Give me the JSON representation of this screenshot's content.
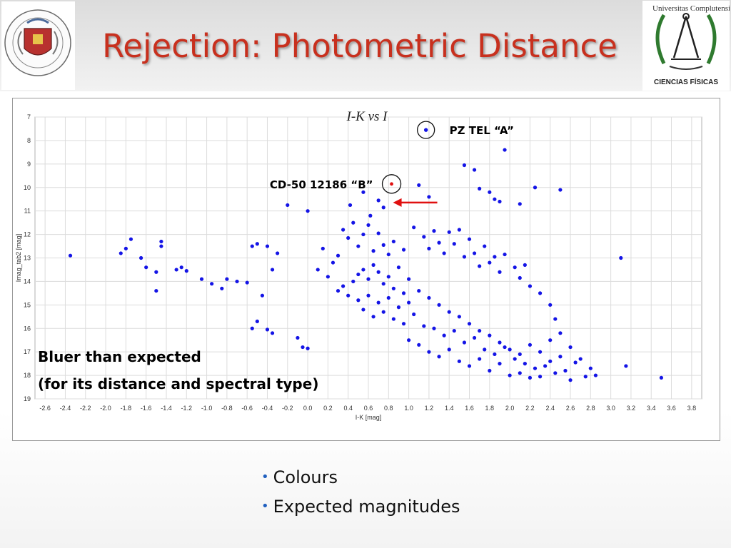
{
  "slide": {
    "title": "Rejection: Photometric Distance",
    "logo_right_caption": "CIENCIAS FÍSICAS",
    "bullets": [
      "Colours",
      "Expected magnitudes"
    ],
    "accent_color": "#c8301e",
    "bullet_color": "#1f5fbf"
  },
  "chart_data": {
    "type": "scatter",
    "title": "I-K  vs I",
    "xlabel": "I-K [mag]",
    "ylabel": "Imag_tab2 [mag]",
    "xlim": [
      -2.7,
      3.9
    ],
    "ylim": [
      7,
      19
    ],
    "y_inverted": true,
    "grid": true,
    "x_ticks": [
      "-2.6",
      "-2.4",
      "-2.2",
      "-2.0",
      "-1.8",
      "-1.6",
      "-1.4",
      "-1.2",
      "-1.0",
      "-0.8",
      "-0.6",
      "-0.4",
      "-0.2",
      "0.0",
      "0.2",
      "0.4",
      "0.6",
      "0.8",
      "1.0",
      "1.2",
      "1.4",
      "1.6",
      "1.8",
      "2.0",
      "2.2",
      "2.4",
      "2.6",
      "2.8",
      "3.0",
      "3.2",
      "3.4",
      "3.6",
      "3.8"
    ],
    "y_ticks": [
      "7",
      "8",
      "9",
      "10",
      "11",
      "12",
      "13",
      "14",
      "15",
      "16",
      "17",
      "18",
      "19"
    ],
    "point_color": "#1414e6",
    "annotations": [
      {
        "label": "PZ TEL “A”",
        "x": 1.17,
        "y": 7.55
      },
      {
        "label": "CD-50 12186 “B”",
        "x": 0.83,
        "y": 9.85
      },
      {
        "label": "Bluer than expected",
        "x": -2.65,
        "y": 17.1
      },
      {
        "label": "(for its distance and spectral type)",
        "x": -2.65,
        "y": 18.3
      }
    ],
    "series": [
      {
        "points": [
          [
            1.17,
            7.55
          ],
          [
            0.83,
            9.85
          ],
          [
            -2.35,
            12.9
          ],
          [
            -1.85,
            12.8
          ],
          [
            -1.75,
            12.2
          ],
          [
            -1.8,
            12.6
          ],
          [
            -1.65,
            13.0
          ],
          [
            -1.6,
            13.4
          ],
          [
            -1.5,
            13.6
          ],
          [
            -1.45,
            12.3
          ],
          [
            -1.45,
            12.5
          ],
          [
            -1.3,
            13.5
          ],
          [
            -1.25,
            13.4
          ],
          [
            -1.2,
            13.55
          ],
          [
            -1.5,
            14.4
          ],
          [
            -1.05,
            13.9
          ],
          [
            -0.95,
            14.1
          ],
          [
            -0.85,
            14.3
          ],
          [
            -0.8,
            13.9
          ],
          [
            -0.7,
            14.0
          ],
          [
            -0.6,
            14.05
          ],
          [
            -0.55,
            12.5
          ],
          [
            -0.5,
            12.4
          ],
          [
            -0.4,
            12.5
          ],
          [
            -0.3,
            12.8
          ],
          [
            -0.35,
            13.5
          ],
          [
            -0.45,
            14.6
          ],
          [
            -0.5,
            15.7
          ],
          [
            -0.55,
            16.0
          ],
          [
            -0.4,
            16.05
          ],
          [
            -0.35,
            16.2
          ],
          [
            -0.1,
            16.4
          ],
          [
            -0.05,
            16.8
          ],
          [
            0.0,
            16.85
          ],
          [
            -0.2,
            10.75
          ],
          [
            0.0,
            11.0
          ],
          [
            0.42,
            10.75
          ],
          [
            0.55,
            10.2
          ],
          [
            0.62,
            11.2
          ],
          [
            0.7,
            10.55
          ],
          [
            0.75,
            10.85
          ],
          [
            1.1,
            9.9
          ],
          [
            1.2,
            10.4
          ],
          [
            1.55,
            9.05
          ],
          [
            1.65,
            9.25
          ],
          [
            1.8,
            10.2
          ],
          [
            1.7,
            10.05
          ],
          [
            1.85,
            10.5
          ],
          [
            1.9,
            10.6
          ],
          [
            1.95,
            8.4
          ],
          [
            2.15,
            13.3
          ],
          [
            2.25,
            10.0
          ],
          [
            2.5,
            10.1
          ],
          [
            2.1,
            10.7
          ],
          [
            3.1,
            13.0
          ],
          [
            3.5,
            18.1
          ],
          [
            3.15,
            17.6
          ],
          [
            2.65,
            17.45
          ],
          [
            2.75,
            18.05
          ],
          [
            0.85,
            12.3
          ],
          [
            0.95,
            12.65
          ],
          [
            1.05,
            11.7
          ],
          [
            1.15,
            12.1
          ],
          [
            1.2,
            12.6
          ],
          [
            1.25,
            11.85
          ],
          [
            1.3,
            12.35
          ],
          [
            1.35,
            12.8
          ],
          [
            1.4,
            11.9
          ],
          [
            1.45,
            12.4
          ],
          [
            1.5,
            11.8
          ],
          [
            1.55,
            12.95
          ],
          [
            1.6,
            12.2
          ],
          [
            1.65,
            12.8
          ],
          [
            1.7,
            13.35
          ],
          [
            1.75,
            12.5
          ],
          [
            1.8,
            13.2
          ],
          [
            1.85,
            12.95
          ],
          [
            1.9,
            13.6
          ],
          [
            1.95,
            12.85
          ],
          [
            2.05,
            13.4
          ],
          [
            2.1,
            13.85
          ],
          [
            2.2,
            14.2
          ],
          [
            2.3,
            14.5
          ],
          [
            2.4,
            15.0
          ],
          [
            2.45,
            15.6
          ],
          [
            0.35,
            11.8
          ],
          [
            0.4,
            12.15
          ],
          [
            0.45,
            11.5
          ],
          [
            0.5,
            12.5
          ],
          [
            0.55,
            12.0
          ],
          [
            0.6,
            11.6
          ],
          [
            0.65,
            12.7
          ],
          [
            0.7,
            11.95
          ],
          [
            0.75,
            12.45
          ],
          [
            0.8,
            12.85
          ],
          [
            0.3,
            12.9
          ],
          [
            0.25,
            13.2
          ],
          [
            0.15,
            12.6
          ],
          [
            0.1,
            13.5
          ],
          [
            0.2,
            13.8
          ],
          [
            0.5,
            14.8
          ],
          [
            0.6,
            14.6
          ],
          [
            0.7,
            14.9
          ],
          [
            0.8,
            14.7
          ],
          [
            0.9,
            15.1
          ],
          [
            1.0,
            14.9
          ],
          [
            0.55,
            15.2
          ],
          [
            0.65,
            15.5
          ],
          [
            0.75,
            15.3
          ],
          [
            0.85,
            15.6
          ],
          [
            0.95,
            15.8
          ],
          [
            1.05,
            15.4
          ],
          [
            1.15,
            15.9
          ],
          [
            1.25,
            16.0
          ],
          [
            1.35,
            16.3
          ],
          [
            1.45,
            16.1
          ],
          [
            1.55,
            16.6
          ],
          [
            1.65,
            16.4
          ],
          [
            1.75,
            16.9
          ],
          [
            1.85,
            17.1
          ],
          [
            1.95,
            16.8
          ],
          [
            2.05,
            17.3
          ],
          [
            2.15,
            17.5
          ],
          [
            2.25,
            17.7
          ],
          [
            2.35,
            17.6
          ],
          [
            2.45,
            17.9
          ],
          [
            2.55,
            17.8
          ],
          [
            2.6,
            18.2
          ],
          [
            1.0,
            16.5
          ],
          [
            1.1,
            16.7
          ],
          [
            1.2,
            17.0
          ],
          [
            1.3,
            17.2
          ],
          [
            1.4,
            16.9
          ],
          [
            1.5,
            17.4
          ],
          [
            1.6,
            17.6
          ],
          [
            1.7,
            17.3
          ],
          [
            1.8,
            17.8
          ],
          [
            1.9,
            17.5
          ],
          [
            2.0,
            18.0
          ],
          [
            2.1,
            17.9
          ],
          [
            2.2,
            18.1
          ],
          [
            2.3,
            18.05
          ],
          [
            2.4,
            17.4
          ],
          [
            2.5,
            17.2
          ],
          [
            0.3,
            14.4
          ],
          [
            0.35,
            14.2
          ],
          [
            0.4,
            14.6
          ],
          [
            0.45,
            14.0
          ],
          [
            0.5,
            13.7
          ],
          [
            0.55,
            13.5
          ],
          [
            0.6,
            13.9
          ],
          [
            0.65,
            13.3
          ],
          [
            0.7,
            13.6
          ],
          [
            0.75,
            14.1
          ],
          [
            0.8,
            13.8
          ],
          [
            0.85,
            14.3
          ],
          [
            0.9,
            13.4
          ],
          [
            0.95,
            14.5
          ],
          [
            1.0,
            13.9
          ],
          [
            1.1,
            14.4
          ],
          [
            1.2,
            14.7
          ],
          [
            1.3,
            15.0
          ],
          [
            1.4,
            15.3
          ],
          [
            1.5,
            15.5
          ],
          [
            1.6,
            15.8
          ],
          [
            1.7,
            16.1
          ],
          [
            1.8,
            16.3
          ],
          [
            1.9,
            16.6
          ],
          [
            2.0,
            16.9
          ],
          [
            2.1,
            17.1
          ],
          [
            2.2,
            16.7
          ],
          [
            2.3,
            17.0
          ],
          [
            2.4,
            16.5
          ],
          [
            2.5,
            16.2
          ],
          [
            2.6,
            16.8
          ],
          [
            2.7,
            17.3
          ],
          [
            2.8,
            17.7
          ],
          [
            2.85,
            18.0
          ]
        ]
      }
    ]
  }
}
